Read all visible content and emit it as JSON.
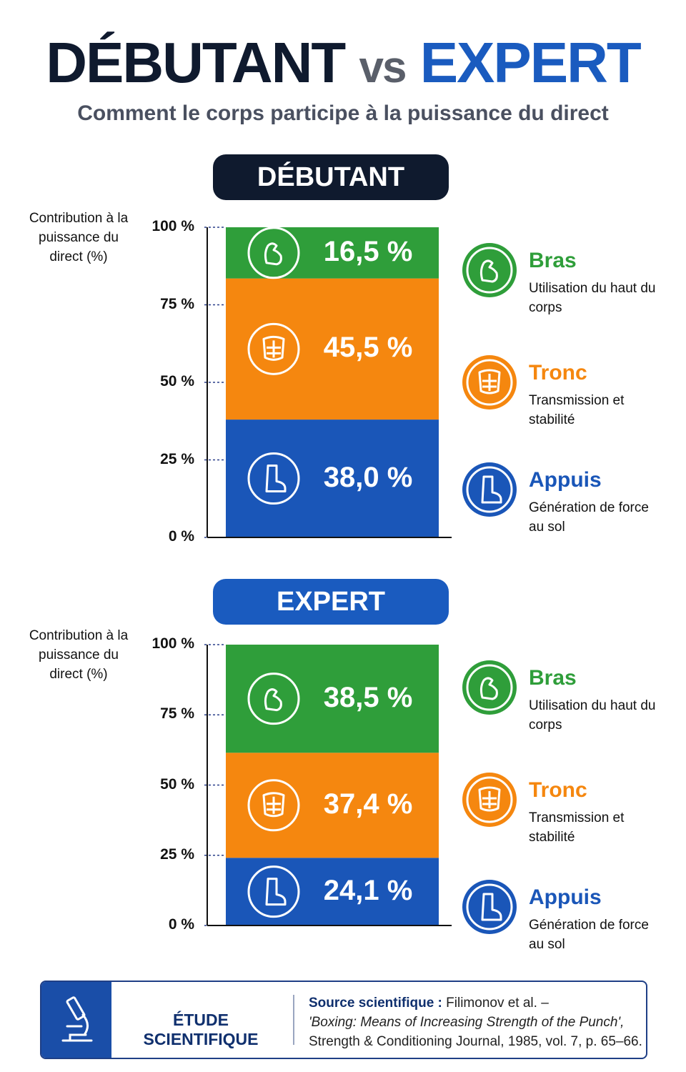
{
  "header": {
    "title_left": "DÉBUTANT",
    "title_vs": "vs",
    "title_right": "EXPERT",
    "subtitle": "Comment le corps participe à la puissance du direct"
  },
  "chart_data": [
    {
      "type": "stacked-bar",
      "title": "DÉBUTANT",
      "title_color": "#0f1a2e",
      "ylabel": "Contribution à la puissance du direct (%)",
      "ylim": [
        0,
        100
      ],
      "yticks": [
        {
          "value": 0,
          "label": "0 %"
        },
        {
          "value": 25,
          "label": "25 %"
        },
        {
          "value": 50,
          "label": "50 %"
        },
        {
          "value": 75,
          "label": "75 %"
        },
        {
          "value": 100,
          "label": "100 %"
        }
      ],
      "series": [
        {
          "name": "Appuis",
          "description": "Génération de force au sol",
          "color": "#1a56b8",
          "values": [
            38.0
          ],
          "value_labels": [
            "38,0 %"
          ]
        },
        {
          "name": "Tronc",
          "description": "Transmission et stabilité",
          "color": "#f5870f",
          "values": [
            45.5
          ],
          "value_labels": [
            "45,5 %"
          ]
        },
        {
          "name": "Bras",
          "description": "Utilisation du haut du corps",
          "color": "#2f9e3a",
          "values": [
            16.5
          ],
          "value_labels": [
            "16,5 %"
          ]
        }
      ]
    },
    {
      "type": "stacked-bar",
      "title": "EXPERT",
      "title_color": "#1a5bbf",
      "ylabel": "Contribution à la puissance du direct (%)",
      "ylim": [
        0,
        100
      ],
      "yticks": [
        {
          "value": 0,
          "label": "0 %"
        },
        {
          "value": 25,
          "label": "25 %"
        },
        {
          "value": 50,
          "label": "50 %"
        },
        {
          "value": 75,
          "label": "75 %"
        },
        {
          "value": 100,
          "label": "100 %"
        }
      ],
      "series": [
        {
          "name": "Appuis",
          "description": "Génération de force au sol",
          "color": "#1a56b8",
          "values": [
            24.1
          ],
          "value_labels": [
            "24,1 %"
          ]
        },
        {
          "name": "Tronc",
          "description": "Transmission et stabilité",
          "color": "#f5870f",
          "values": [
            37.4
          ],
          "value_labels": [
            "37,4 %"
          ]
        },
        {
          "name": "Bras",
          "description": "Utilisation du haut du corps",
          "color": "#2f9e3a",
          "values": [
            38.5
          ],
          "value_labels": [
            "38,5 %"
          ]
        }
      ]
    }
  ],
  "footer": {
    "badge": "ÉTUDE SCIENTIFIQUE",
    "source_label": "Source scientifique :",
    "source_authors": "Filimonov et al. –",
    "source_title": "'Boxing: Means of Increasing Strength of the Punch',",
    "source_journal": "Strength & Conditioning Journal, 1985, vol. 7, p. 65–66."
  }
}
